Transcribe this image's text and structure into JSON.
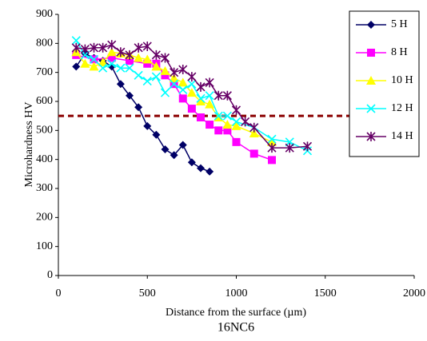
{
  "chart_data": {
    "type": "line",
    "y_label": "Microhardness HV",
    "x_label": "Distance from the surface (µm)",
    "subtitle": "16NC6",
    "xlim": [
      0,
      2000
    ],
    "xticks": [
      0,
      500,
      1000,
      1500,
      2000
    ],
    "ylim": [
      0,
      900
    ],
    "yticks": [
      0,
      100,
      200,
      300,
      400,
      500,
      600,
      700,
      800,
      900
    ],
    "grid": false,
    "legend": "top-right",
    "reference_line": {
      "y": 550,
      "color": "#8b0000"
    },
    "series": [
      {
        "name": "5 H",
        "color": "#000066",
        "marker": "diamond",
        "x": [
          100,
          150,
          200,
          250,
          300,
          350,
          400,
          450,
          500,
          550,
          600,
          650,
          700,
          750,
          800,
          850
        ],
        "values": [
          720,
          765,
          750,
          740,
          720,
          660,
          620,
          580,
          515,
          485,
          435,
          415,
          450,
          390,
          370,
          358
        ]
      },
      {
        "name": "8 H",
        "color": "#ff00ff",
        "marker": "square",
        "x": [
          100,
          200,
          300,
          400,
          500,
          550,
          600,
          650,
          700,
          750,
          800,
          850,
          900,
          950,
          1000,
          1100,
          1200
        ],
        "values": [
          760,
          745,
          750,
          740,
          730,
          730,
          690,
          660,
          610,
          575,
          545,
          520,
          500,
          500,
          460,
          420,
          398
        ]
      },
      {
        "name": "10 H",
        "color": "#ffff00",
        "marker": "triangle",
        "x": [
          100,
          150,
          200,
          250,
          300,
          350,
          400,
          450,
          500,
          550,
          600,
          650,
          700,
          750,
          800,
          850,
          900,
          950,
          1000,
          1100,
          1200
        ],
        "values": [
          770,
          730,
          720,
          735,
          770,
          765,
          760,
          750,
          745,
          720,
          705,
          680,
          665,
          630,
          600,
          590,
          545,
          520,
          515,
          490,
          460
        ]
      },
      {
        "name": "12 H",
        "color": "#00ffff",
        "marker": "x",
        "x": [
          100,
          150,
          200,
          250,
          300,
          350,
          400,
          450,
          500,
          550,
          600,
          650,
          700,
          750,
          800,
          850,
          900,
          950,
          1000,
          1100,
          1200,
          1300,
          1400
        ],
        "values": [
          810,
          760,
          745,
          715,
          730,
          715,
          715,
          690,
          670,
          685,
          630,
          660,
          640,
          660,
          610,
          620,
          550,
          550,
          530,
          510,
          470,
          460,
          430
        ]
      },
      {
        "name": "14 H",
        "color": "#660066",
        "marker": "star",
        "x": [
          100,
          150,
          200,
          250,
          300,
          350,
          400,
          450,
          500,
          550,
          600,
          650,
          700,
          750,
          800,
          850,
          900,
          950,
          1000,
          1050,
          1100,
          1200,
          1300,
          1400
        ],
        "values": [
          785,
          780,
          785,
          785,
          795,
          770,
          760,
          785,
          790,
          760,
          750,
          700,
          710,
          685,
          650,
          665,
          620,
          620,
          570,
          530,
          510,
          440,
          440,
          445
        ]
      }
    ]
  }
}
